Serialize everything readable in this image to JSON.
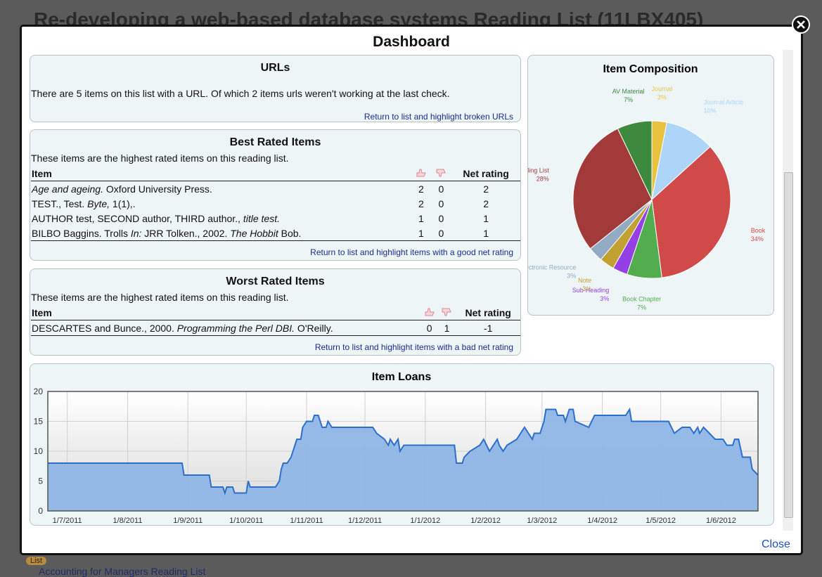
{
  "background": {
    "title": "Re-developing a web-based database systems Reading List (11LBX405)",
    "list_badge": "List",
    "list_title": "Accounting for Managers Reading List"
  },
  "modal": {
    "title": "Dashboard",
    "close": "Close"
  },
  "urls": {
    "title": "URLs",
    "text": "There are 5 items on this list with a URL. Of which 2 items urls weren't working at the last check.",
    "link": "Return to list and highlight broken URLs"
  },
  "best_rated": {
    "title": "Best Rated Items",
    "description": "These items are the highest rated items on this reading list.",
    "header": {
      "item": "Item",
      "net": "Net rating"
    },
    "rows": [
      {
        "item": [
          {
            "text": "Age and ageing.",
            "italic": true
          },
          {
            "text": " Oxford University Press.",
            "italic": false
          }
        ],
        "up": "2",
        "down": "0",
        "net": "2"
      },
      {
        "item": [
          {
            "text": "TEST., Test. ",
            "italic": false
          },
          {
            "text": "Byte,",
            "italic": true
          },
          {
            "text": " 1(1),.",
            "italic": false
          }
        ],
        "up": "2",
        "down": "0",
        "net": "2"
      },
      {
        "item": [
          {
            "text": "AUTHOR test, SECOND author, THIRD author., ",
            "italic": false
          },
          {
            "text": "title test.",
            "italic": true
          }
        ],
        "up": "1",
        "down": "0",
        "net": "1"
      },
      {
        "item": [
          {
            "text": "BILBO Baggins. Trolls ",
            "italic": false
          },
          {
            "text": "In:",
            "italic": true
          },
          {
            "text": " JRR Tolken., 2002. ",
            "italic": false
          },
          {
            "text": "The Hobbit",
            "italic": true
          },
          {
            "text": " Bob.",
            "italic": false
          }
        ],
        "up": "1",
        "down": "0",
        "net": "1"
      }
    ],
    "link": "Return to list and highlight items with a good net rating"
  },
  "worst_rated": {
    "title": "Worst Rated Items",
    "description": "These items are the highest rated items on this reading list.",
    "header": {
      "item": "Item",
      "net": "Net rating"
    },
    "rows": [
      {
        "item": [
          {
            "text": "DESCARTES and Bunce., 2000. ",
            "italic": false
          },
          {
            "text": "Programming the Perl DBI.",
            "italic": true
          },
          {
            "text": " O'Reilly.",
            "italic": false
          }
        ],
        "up": "0",
        "down": "1",
        "net": "-1"
      }
    ],
    "link": "Return to list and highlight items with a bad net rating"
  },
  "chart_data": [
    {
      "type": "pie",
      "title": "Item Composition",
      "categories": [
        "Journal",
        "Journal Article",
        "Book",
        "Book Chapter",
        "Sub-Heading",
        "Note",
        "Electronic Resource",
        "Reading List",
        "AV Material"
      ],
      "values": [
        3,
        10,
        34,
        7,
        3,
        3,
        3,
        28,
        7
      ],
      "value_labels": [
        "3%",
        "10%",
        "34%",
        "7%",
        "3%",
        "3%",
        "3%",
        "28%",
        "7%"
      ],
      "colors": [
        "#e9c340",
        "#acd5f7",
        "#d04a4a",
        "#52ad4f",
        "#9440e6",
        "#c2a032",
        "#92abc2",
        "#a23a3a",
        "#3d8a3e"
      ]
    },
    {
      "type": "area",
      "title": "Item Loans",
      "x": [
        "2011-06-21",
        "2011-08-29",
        "2011-08-30",
        "2011-09-12",
        "2011-09-13",
        "2011-09-19",
        "2011-09-20",
        "2011-09-21",
        "2011-09-24",
        "2011-09-25",
        "2011-10-01",
        "2011-10-02",
        "2011-10-03",
        "2011-10-16",
        "2011-10-18",
        "2011-10-19",
        "2011-10-20",
        "2011-10-22",
        "2011-10-24",
        "2011-10-25",
        "2011-10-27",
        "2011-10-29",
        "2011-10-30",
        "2011-11-01",
        "2011-11-04",
        "2011-11-05",
        "2011-11-07",
        "2011-11-09",
        "2011-11-11",
        "2011-11-12",
        "2011-11-14",
        "2011-12-05",
        "2011-12-07",
        "2011-12-11",
        "2011-12-13",
        "2011-12-14",
        "2011-12-16",
        "2011-12-18",
        "2011-12-19",
        "2011-12-21",
        "2012-01-16",
        "2012-01-17",
        "2012-01-20",
        "2012-01-21",
        "2012-01-24",
        "2012-01-29",
        "2012-01-31",
        "2012-02-03",
        "2012-02-07",
        "2012-02-08",
        "2012-02-10",
        "2012-02-12",
        "2012-02-17",
        "2012-02-19",
        "2012-02-21",
        "2012-02-23",
        "2012-02-25",
        "2012-02-26",
        "2012-02-29",
        "2012-03-02",
        "2012-03-03",
        "2012-03-08",
        "2012-03-09",
        "2012-03-12",
        "2012-03-13",
        "2012-03-15",
        "2012-03-17",
        "2012-03-18",
        "2012-03-25",
        "2012-03-28",
        "2012-04-13",
        "2012-04-15",
        "2012-04-16",
        "2012-05-02",
        "2012-05-05",
        "2012-05-08",
        "2012-05-12",
        "2012-05-16",
        "2012-05-18",
        "2012-05-20",
        "2012-05-21",
        "2012-05-23",
        "2012-05-26",
        "2012-05-29",
        "2012-06-02",
        "2012-06-04",
        "2012-06-07",
        "2012-06-08",
        "2012-06-10",
        "2012-06-12",
        "2012-06-16",
        "2012-06-17",
        "2012-06-20"
      ],
      "series": [
        {
          "color": "#2b6fcb",
          "fill": "#8fb6e6",
          "values": [
            8,
            8,
            6,
            6,
            4,
            4,
            3,
            4,
            4,
            3,
            3,
            5,
            4,
            4,
            5,
            7,
            8,
            8,
            9,
            10,
            12,
            12,
            14,
            15,
            15,
            16,
            16,
            14,
            14,
            15,
            14,
            14,
            13,
            12,
            11,
            12,
            11,
            12,
            10,
            11,
            11,
            8,
            8,
            9,
            10,
            11,
            12,
            10,
            12,
            11,
            10,
            11,
            12,
            13,
            14,
            13,
            12,
            13,
            13,
            15,
            17,
            17,
            16,
            16,
            15,
            17,
            17,
            15,
            14,
            16,
            16,
            17,
            15,
            15,
            15,
            13,
            14,
            14,
            13,
            14,
            13,
            14,
            13,
            12,
            12,
            11,
            11,
            12,
            12,
            9,
            9,
            7,
            6
          ]
        }
      ],
      "xlim": [
        "2011-06-21",
        "2012-06-20"
      ],
      "xticks": [
        {
          "value": "2011-07-01",
          "label": "1/7/2011"
        },
        {
          "value": "2011-08-01",
          "label": "1/8/2011"
        },
        {
          "value": "2011-09-01",
          "label": "1/9/2011"
        },
        {
          "value": "2011-10-01",
          "label": "1/10/2011"
        },
        {
          "value": "2011-11-01",
          "label": "1/11/2011"
        },
        {
          "value": "2011-12-01",
          "label": "1/12/2011"
        },
        {
          "value": "2012-01-01",
          "label": "1/1/2012"
        },
        {
          "value": "2012-02-01",
          "label": "1/2/2012"
        },
        {
          "value": "2012-03-01",
          "label": "1/3/2012"
        },
        {
          "value": "2012-04-01",
          "label": "1/4/2012"
        },
        {
          "value": "2012-05-01",
          "label": "1/5/2012"
        },
        {
          "value": "2012-06-01",
          "label": "1/6/2012"
        }
      ],
      "ylim": [
        0,
        20
      ],
      "yticks": [
        0,
        5,
        10,
        15,
        20
      ],
      "grid": true
    }
  ]
}
